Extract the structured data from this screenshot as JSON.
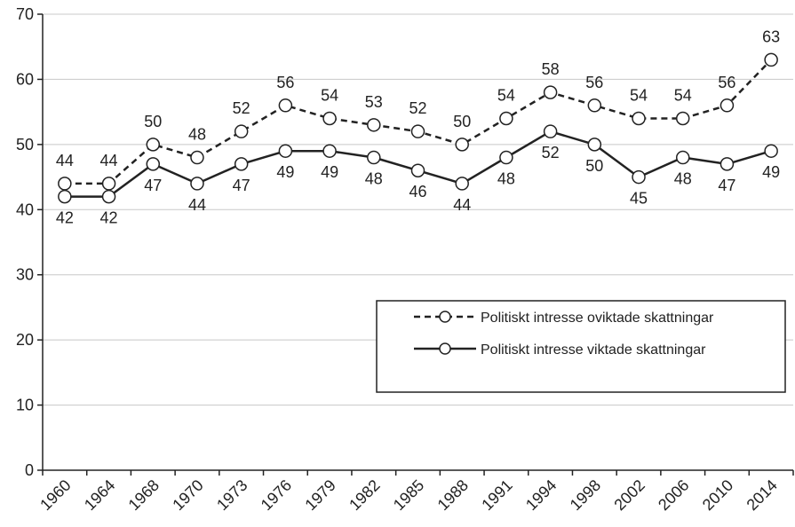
{
  "chart_data": {
    "type": "line",
    "title": "",
    "xlabel": "",
    "ylabel": "",
    "categories": [
      "1960",
      "1964",
      "1968",
      "1970",
      "1973",
      "1976",
      "1979",
      "1982",
      "1985",
      "1988",
      "1991",
      "1994",
      "1998",
      "2002",
      "2006",
      "2010",
      "2014"
    ],
    "ylim": [
      0,
      70
    ],
    "yticks": [
      0,
      10,
      20,
      30,
      40,
      50,
      60,
      70
    ],
    "grid": true,
    "legend_position": "right",
    "series": [
      {
        "name": "Politiskt intresse oviktade skattningar",
        "style": "dashed",
        "values": [
          44,
          44,
          50,
          48,
          52,
          56,
          54,
          53,
          52,
          50,
          54,
          58,
          56,
          54,
          54,
          56,
          63
        ]
      },
      {
        "name": "Politiskt intresse viktade skattningar",
        "style": "solid",
        "values": [
          42,
          42,
          47,
          44,
          47,
          49,
          49,
          48,
          46,
          44,
          48,
          52,
          50,
          45,
          48,
          47,
          49
        ]
      }
    ],
    "colors": {
      "line": "#222222",
      "marker_fill": "#ffffff",
      "grid": "#c8c8c8"
    }
  }
}
